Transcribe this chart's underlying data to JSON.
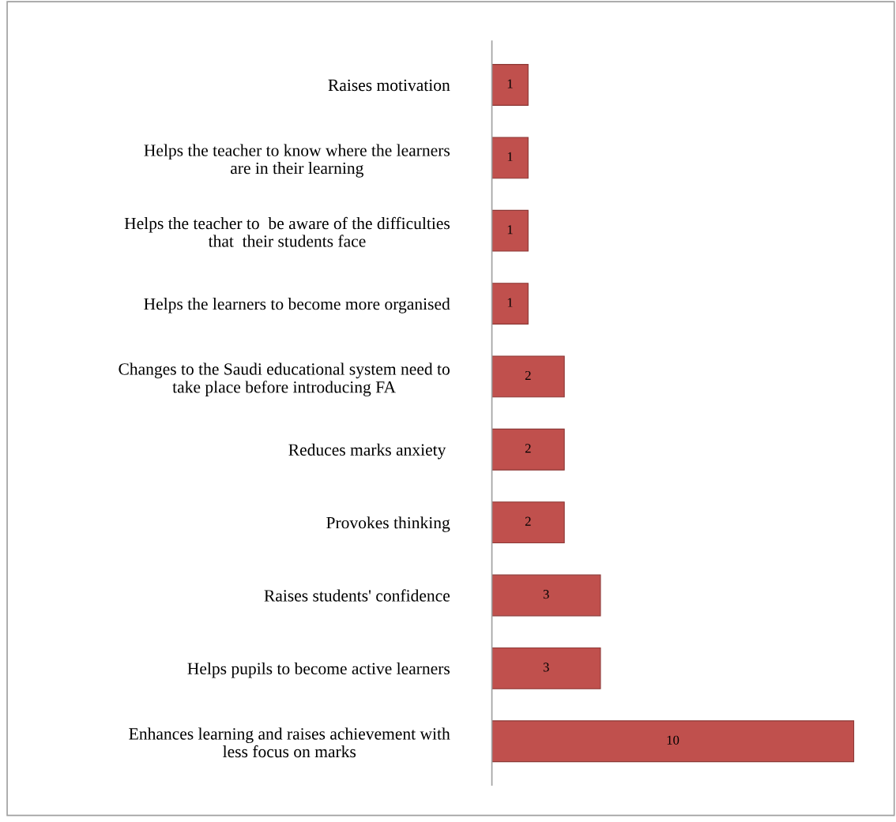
{
  "chart_data": {
    "type": "bar",
    "orientation": "horizontal",
    "categories": [
      "Raises motivation",
      "Helps the teacher to know where the learners\nare in their learning",
      "Helps the teacher to  be aware of the difficulties\nthat  their students face",
      "Helps the learners to become more organised",
      "Changes to the Saudi educational system need to\ntake place before introducing FA",
      "Reduces marks anxiety ",
      "Provokes thinking",
      "Raises students' confidence",
      "Helps pupils to become active learners",
      "Enhances learning and raises achievement with\nless focus on marks"
    ],
    "values": [
      1,
      1,
      1,
      1,
      2,
      2,
      2,
      3,
      3,
      10
    ],
    "color": "#c0504d",
    "data_labels": true,
    "grid": false,
    "legend": false,
    "tick_labels": "y"
  }
}
